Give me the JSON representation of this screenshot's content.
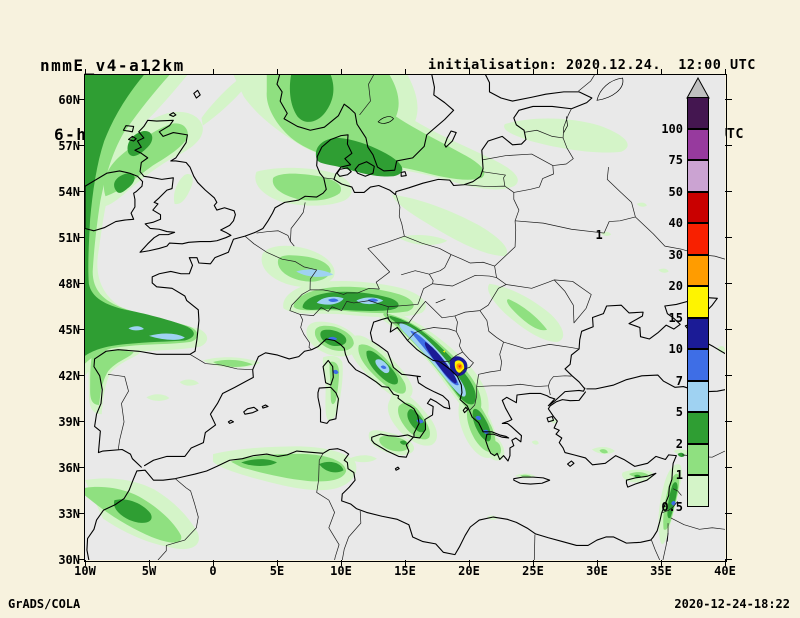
{
  "header": {
    "model": "nmmE_v4-a12km",
    "product": "6-h Acc.Prec.",
    "init": "initialisation: 2020.12.24.  12:00 UTC",
    "valid": "valid(+116h): 2020.DEC.29 08:00 UTC"
  },
  "footer": {
    "credit": "GrADS/COLA",
    "created": "2020-12-24-18:22"
  },
  "axes": {
    "lat_labels": [
      "60N",
      "57N",
      "54N",
      "51N",
      "48N",
      "45N",
      "42N",
      "39N",
      "36N",
      "33N",
      "30N"
    ],
    "lon_labels": [
      "10W",
      "5W",
      "0",
      "5E",
      "10E",
      "15E",
      "20E",
      "25E",
      "30E",
      "35E",
      "40E"
    ]
  },
  "colorbar": {
    "labels_top_to_bottom": [
      "100",
      "75",
      "50",
      "40",
      "30",
      "20",
      "15",
      "10",
      "7",
      "5",
      "2",
      "1",
      "0.5"
    ],
    "segments_top_to_bottom": [
      {
        "key": "p100",
        "range": "> 100",
        "color": "#441650",
        "bottom_label": "100"
      },
      {
        "key": "p75",
        "range": "75-100",
        "color": "#973a9e",
        "bottom_label": "75"
      },
      {
        "key": "p50",
        "range": "50-75",
        "color": "#cba3d2",
        "bottom_label": "50"
      },
      {
        "key": "p40",
        "range": "40-50",
        "color": "#c90000",
        "bottom_label": "40"
      },
      {
        "key": "p30",
        "range": "30-40",
        "color": "#f82000",
        "bottom_label": "30"
      },
      {
        "key": "p20",
        "range": "20-30",
        "color": "#ff9c00",
        "bottom_label": "20"
      },
      {
        "key": "p15",
        "range": "15-20",
        "color": "#fef400",
        "bottom_label": "15"
      },
      {
        "key": "p10",
        "range": "10-15",
        "color": "#1b1b96",
        "bottom_label": "10"
      },
      {
        "key": "p7",
        "range": "7-10",
        "color": "#3e6ee6",
        "bottom_label": "7"
      },
      {
        "key": "p5",
        "range": "5-7",
        "color": "#9fd2f2",
        "bottom_label": "5"
      },
      {
        "key": "p2",
        "range": "2-5",
        "color": "#2f9e33",
        "bottom_label": "2"
      },
      {
        "key": "p1",
        "range": "1-2",
        "color": "#8fe080",
        "bottom_label": "1"
      },
      {
        "key": "p05",
        "range": "0.5-1",
        "color": "#d4f4c8",
        "bottom_label": "0.5"
      }
    ],
    "arrow_color": "#c0c0c0"
  },
  "map": {
    "background_color": "#e9e9e9",
    "page_background": "#f7f2de",
    "extent": {
      "lon_min": -10,
      "lon_max": 40,
      "lat_min": 30,
      "lat_max": 61.6
    },
    "annotations": [
      {
        "text": "1",
        "lon": 30.2,
        "lat": 51.1
      }
    ],
    "precip_regions": [
      {
        "area": "NE Atlantic / Bay of Biscay",
        "max_band": "2-5"
      },
      {
        "area": "Scotland / Irish Sea",
        "max_band": "2-5"
      },
      {
        "area": "S Norway / Denmark / Kattegat",
        "max_band": "2-5"
      },
      {
        "area": "North Germany / Baltic coast",
        "max_band": "1-2"
      },
      {
        "area": "Alps",
        "max_band": "7-10"
      },
      {
        "area": "Liguria / Apennines",
        "max_band": "7-10"
      },
      {
        "area": "Adriatic / Dinaric coast",
        "max_band": "10-15"
      },
      {
        "area": "Montenegro / Albania coast",
        "max_band": "30-40"
      },
      {
        "area": "W Greece / Peloponnese",
        "max_band": "7-10"
      },
      {
        "area": "NW Iberia",
        "max_band": "2-5"
      },
      {
        "area": "Morocco Atlas",
        "max_band": "2-5"
      },
      {
        "area": "N Algeria / Tunisia",
        "max_band": "2-5"
      },
      {
        "area": "S Italy / Sicily",
        "max_band": "7-10"
      },
      {
        "area": "Cyprus",
        "max_band": "2-5"
      },
      {
        "area": "Levant coast",
        "max_band": "7-10"
      }
    ]
  }
}
